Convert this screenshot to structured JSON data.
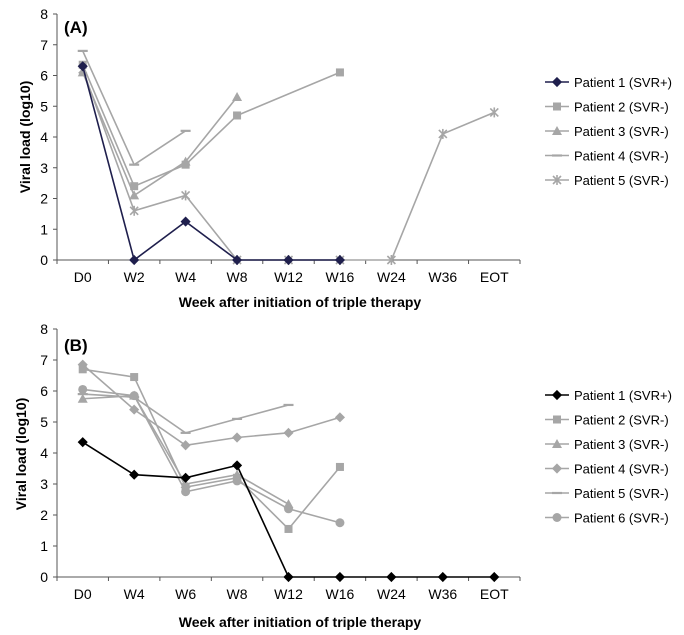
{
  "chart_data": [
    {
      "type": "line",
      "panel_label": "(A)",
      "xlabel": "Week after initiation of triple therapy",
      "ylabel": "Viral load (log10)",
      "categories": [
        "D0",
        "W2",
        "W4",
        "W8",
        "W12",
        "W16",
        "W24",
        "W36",
        "EOT"
      ],
      "ylim": [
        0,
        8
      ],
      "yticks": [
        0,
        1,
        2,
        3,
        4,
        5,
        6,
        7,
        8
      ],
      "legend_position": "right",
      "grid": false,
      "series": [
        {
          "name": "Patient 1 (SVR+)",
          "color": "#1f1f4d",
          "marker": "diamond",
          "values": [
            6.3,
            0,
            1.25,
            0,
            0,
            0,
            null,
            null,
            null
          ]
        },
        {
          "name": "Patient 2 (SVR-)",
          "color": "#a6a6a6",
          "marker": "square",
          "values": [
            6.35,
            2.4,
            3.1,
            4.7,
            null,
            6.1,
            null,
            null,
            null
          ]
        },
        {
          "name": "Patient 3 (SVR-)",
          "color": "#a6a6a6",
          "marker": "triangle",
          "values": [
            6.1,
            2.1,
            3.2,
            5.3,
            null,
            null,
            null,
            null,
            null
          ]
        },
        {
          "name": "Patient 4 (SVR-)",
          "color": "#a6a6a6",
          "marker": "dash",
          "values": [
            6.8,
            3.1,
            4.2,
            null,
            null,
            null,
            null,
            null,
            null
          ]
        },
        {
          "name": "Patient 5 (SVR-)",
          "color": "#a6a6a6",
          "marker": "star",
          "values": [
            6.2,
            1.6,
            2.1,
            0,
            0,
            0,
            0,
            4.1,
            4.8
          ]
        }
      ]
    },
    {
      "type": "line",
      "panel_label": "(B)",
      "xlabel": "Week after initiation of triple therapy",
      "ylabel": "Viral load (log10)",
      "categories": [
        "D0",
        "W4",
        "W6",
        "W8",
        "W12",
        "W16",
        "W24",
        "W36",
        "EOT"
      ],
      "ylim": [
        0,
        8
      ],
      "yticks": [
        0,
        1,
        2,
        3,
        4,
        5,
        6,
        7,
        8
      ],
      "legend_position": "right",
      "grid": false,
      "series": [
        {
          "name": "Patient 1 (SVR+)",
          "color": "#000000",
          "marker": "diamond",
          "values": [
            4.35,
            3.3,
            3.2,
            3.6,
            0,
            0,
            0,
            0,
            0
          ]
        },
        {
          "name": "Patient 2 (SVR-)",
          "color": "#a6a6a6",
          "marker": "square",
          "values": [
            6.7,
            6.45,
            2.9,
            3.2,
            1.55,
            3.55,
            null,
            null,
            null
          ]
        },
        {
          "name": "Patient 3 (SVR-)",
          "color": "#a6a6a6",
          "marker": "triangle",
          "values": [
            5.75,
            5.85,
            3.0,
            3.3,
            2.35,
            null,
            null,
            null,
            null
          ]
        },
        {
          "name": "Patient 4 (SVR-)",
          "color": "#a6a6a6",
          "marker": "diamond",
          "values": [
            6.85,
            5.4,
            4.25,
            4.5,
            4.65,
            5.15,
            null,
            null,
            null
          ]
        },
        {
          "name": "Patient 5 (SVR-)",
          "color": "#a6a6a6",
          "marker": "dash",
          "values": [
            5.9,
            5.8,
            4.65,
            5.1,
            5.55,
            null,
            null,
            null,
            null
          ]
        },
        {
          "name": "Patient 6 (SVR-)",
          "color": "#a6a6a6",
          "marker": "circle",
          "values": [
            6.05,
            5.85,
            2.75,
            3.1,
            2.2,
            1.75,
            null,
            null,
            null
          ]
        }
      ]
    }
  ]
}
